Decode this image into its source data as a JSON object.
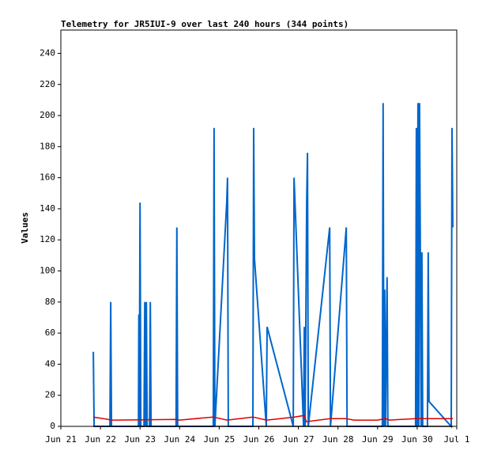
{
  "chart_data": {
    "type": "line",
    "title": "Telemetry for JR5IUI-9 over last 240 hours (344 points)",
    "y_label": "Values",
    "xlim": [
      0,
      10
    ],
    "ylim": [
      0,
      255
    ],
    "yticks": [
      0,
      20,
      40,
      60,
      80,
      100,
      120,
      140,
      160,
      180,
      200,
      220,
      240
    ],
    "xticks": [
      {
        "value": 0,
        "label": "Jun 21"
      },
      {
        "value": 1,
        "label": "Jun 22"
      },
      {
        "value": 2,
        "label": "Jun 23"
      },
      {
        "value": 3,
        "label": "Jun 24"
      },
      {
        "value": 4,
        "label": "Jun 25"
      },
      {
        "value": 5,
        "label": "Jun 26"
      },
      {
        "value": 6,
        "label": "Jun 27"
      },
      {
        "value": 7,
        "label": "Jun 28"
      },
      {
        "value": 8,
        "label": "Jun 29"
      },
      {
        "value": 9,
        "label": "Jun 30"
      },
      {
        "value": 10,
        "label": "Jul 1"
      }
    ],
    "series": [
      {
        "color": "#0066cc",
        "x": [
          0.82,
          0.84,
          1.24,
          1.26,
          1.28,
          1.96,
          1.97,
          1.98,
          2.0,
          2.02,
          2.1,
          2.12,
          2.14,
          2.16,
          2.18,
          2.24,
          2.26,
          2.28,
          2.91,
          2.93,
          2.95,
          3.85,
          3.87,
          3.89,
          4.19,
          4.21,
          4.23,
          4.85,
          4.87,
          4.89,
          5.19,
          5.21,
          5.87,
          5.89,
          6.13,
          6.15,
          6.17,
          6.21,
          6.23,
          6.25,
          6.79,
          6.81,
          7.21,
          7.23,
          8.12,
          8.14,
          8.16,
          8.18,
          8.2,
          8.24,
          8.26,
          8.96,
          8.98,
          9.0,
          9.02,
          9.04,
          9.06,
          9.08,
          9.1,
          9.12,
          9.14,
          9.26,
          9.28,
          9.3,
          9.86,
          9.88,
          9.9
        ],
        "values": [
          48,
          0,
          0,
          80,
          0,
          0,
          72,
          0,
          144,
          0,
          0,
          80,
          0,
          80,
          0,
          0,
          80,
          0,
          0,
          128,
          0,
          0,
          192,
          0,
          144,
          160,
          0,
          0,
          192,
          108,
          0,
          64,
          0,
          160,
          0,
          64,
          0,
          144,
          176,
          0,
          128,
          0,
          128,
          0,
          0,
          208,
          0,
          88,
          0,
          96,
          0,
          0,
          192,
          0,
          208,
          0,
          208,
          112,
          0,
          112,
          0,
          0,
          112,
          16,
          0,
          192,
          128
        ]
      },
      {
        "color": "#dd0000",
        "x": [
          0.82,
          1.3,
          2.9,
          3.0,
          3.85,
          4.2,
          4.85,
          5.2,
          5.9,
          6.15,
          6.2,
          6.8,
          7.2,
          7.4,
          8.0,
          8.2,
          8.3,
          8.96,
          9.3,
          9.9
        ],
        "values": [
          6,
          4,
          4.5,
          4,
          6,
          4,
          6,
          4,
          6,
          7,
          3,
          5,
          5,
          4,
          4,
          5,
          4,
          5,
          5,
          5
        ]
      },
      {
        "color": "#000000",
        "x": [
          0.82,
          9.9
        ],
        "values": [
          0,
          0
        ]
      }
    ]
  }
}
